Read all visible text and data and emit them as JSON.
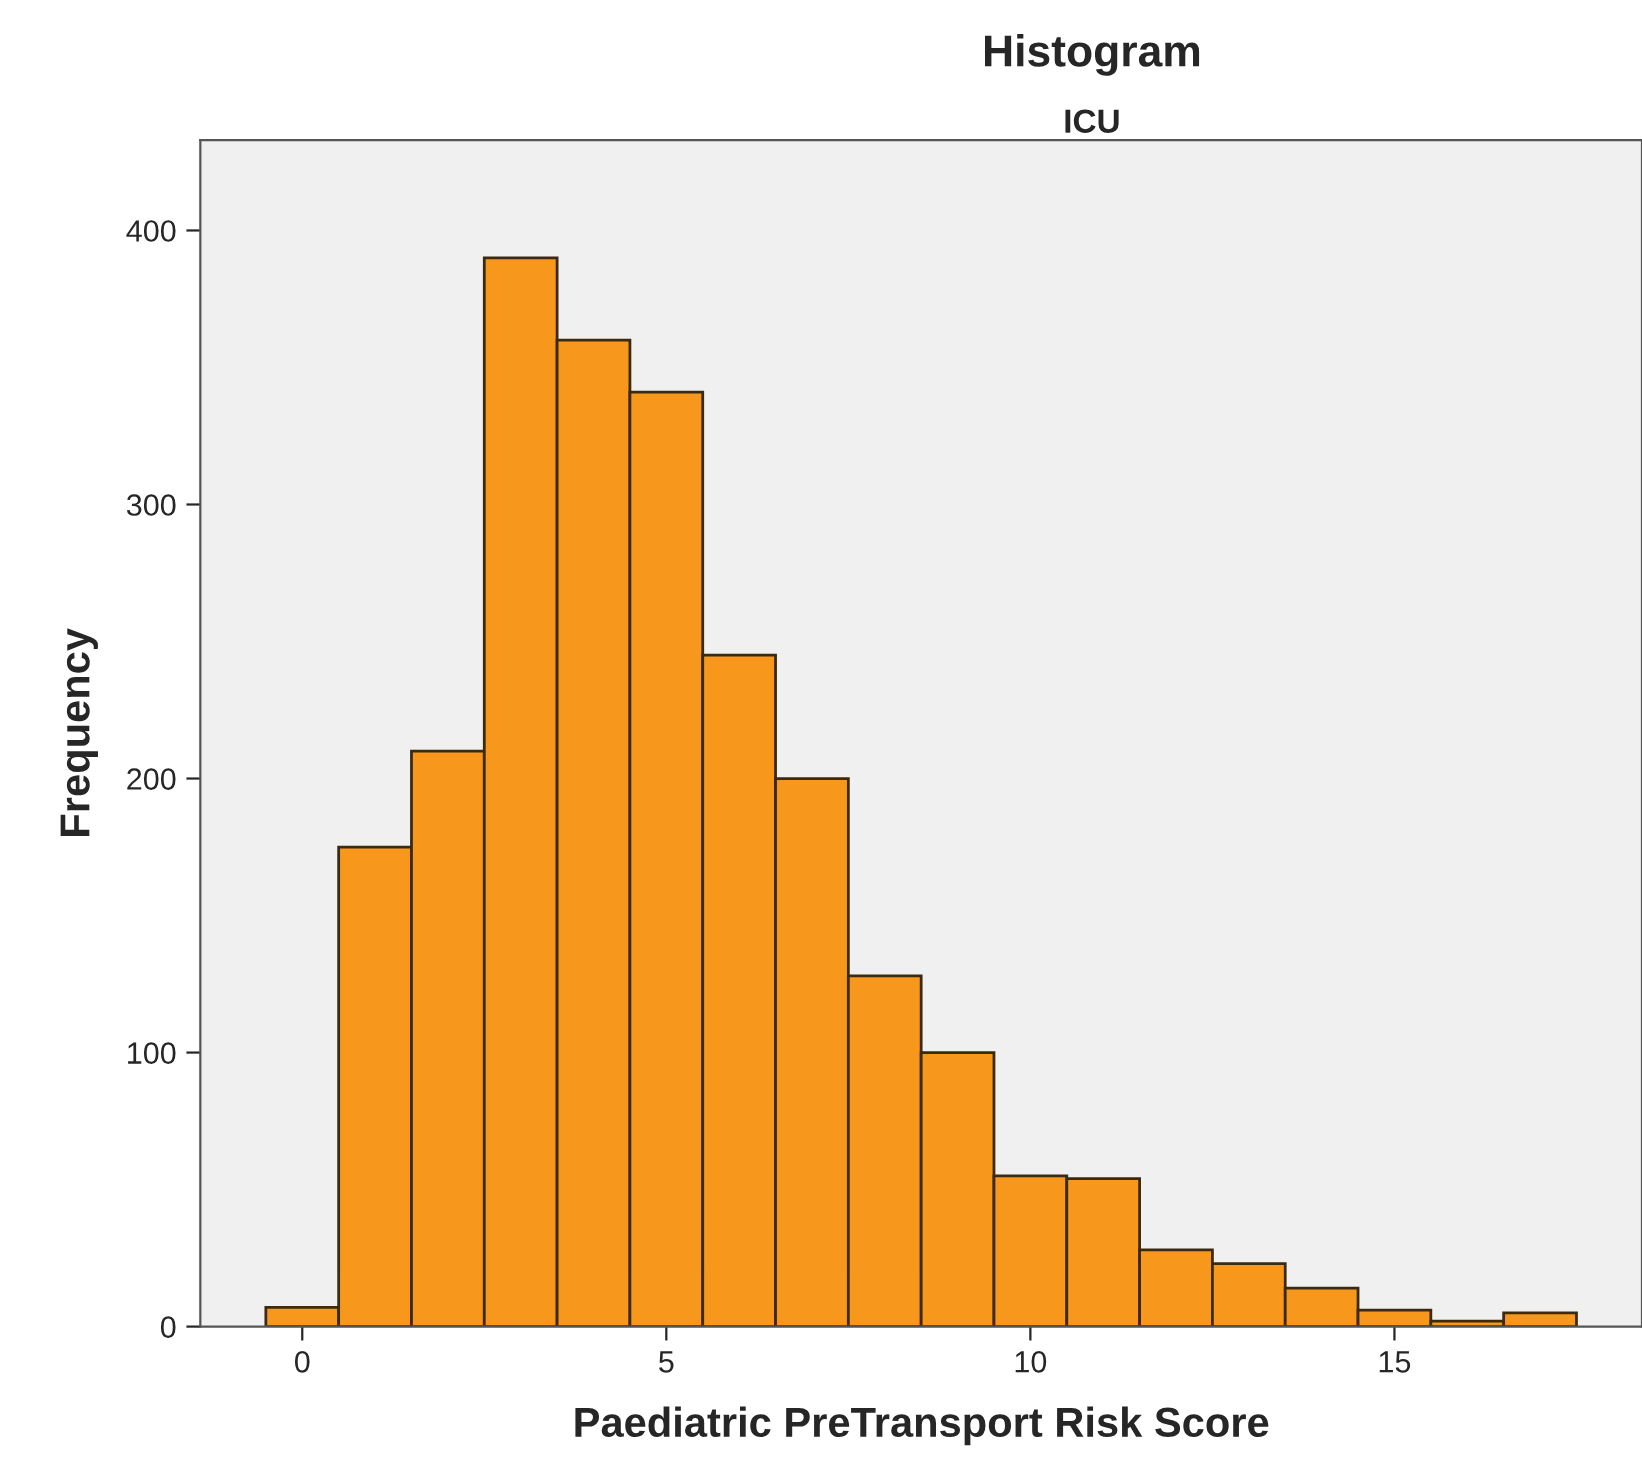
{
  "chart_data": {
    "type": "histogram",
    "title": "Histogram",
    "subtitle": "ICU",
    "xlabel": "Paediatric PreTransport Risk Score",
    "ylabel": "Frequency",
    "bins": [
      -0.5,
      0.5,
      1.5,
      2.5,
      3.5,
      4.5,
      5.5,
      6.5,
      7.5,
      8.5,
      9.5,
      10.5,
      11.5,
      12.5,
      13.5,
      14.5,
      15.5,
      16.5,
      17.5
    ],
    "values": [
      7,
      175,
      210,
      390,
      360,
      341,
      245,
      200,
      128,
      100,
      55,
      54,
      28,
      23,
      14,
      6,
      2,
      5
    ],
    "color": "#f7981d",
    "xlim": [
      -1.4,
      18.4
    ],
    "xticks": [
      0,
      5,
      10,
      15
    ],
    "ylim": [
      0,
      433
    ],
    "yticks": [
      0,
      100,
      200,
      300,
      400
    ],
    "grid": false
  }
}
